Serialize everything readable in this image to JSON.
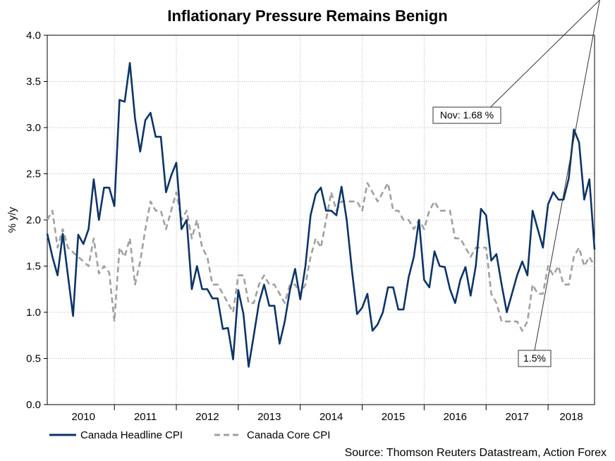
{
  "chart_data": {
    "type": "line",
    "title": "Inflationary Pressure Remains Benign",
    "ylabel": "% y/y",
    "xlabel": "",
    "ylim": [
      0,
      4
    ],
    "yticks": [
      "0.0",
      "0.5",
      "1.0",
      "1.5",
      "2.0",
      "2.5",
      "3.0",
      "3.5",
      "4.0"
    ],
    "x_start": "2009-12",
    "x_end": "2018-11",
    "year_labels": [
      "2010",
      "2011",
      "2012",
      "2013",
      "2014",
      "2015",
      "2016",
      "2017",
      "2018"
    ],
    "grid": true,
    "source": "Source: Thomson Reuters Datastream, Action Forex",
    "series": [
      {
        "name": "Canada Headline CPI",
        "color": "#0d3466",
        "style": "solid",
        "values": [
          1.85,
          1.6,
          1.4,
          1.85,
          1.4,
          0.96,
          1.84,
          1.74,
          1.9,
          2.44,
          2.0,
          2.35,
          2.35,
          2.15,
          3.3,
          3.28,
          3.7,
          3.1,
          2.74,
          3.08,
          3.16,
          2.9,
          2.9,
          2.3,
          2.48,
          2.62,
          1.9,
          2.0,
          1.25,
          1.5,
          1.25,
          1.25,
          1.15,
          1.15,
          0.82,
          0.83,
          0.49,
          1.24,
          0.98,
          0.41,
          0.75,
          1.1,
          1.3,
          1.07,
          1.07,
          0.66,
          0.9,
          1.24,
          1.47,
          1.14,
          1.5,
          2.05,
          2.28,
          2.35,
          2.1,
          2.1,
          2.05,
          2.36,
          2.0,
          1.46,
          0.98,
          1.05,
          1.2,
          0.8,
          0.87,
          1.0,
          1.27,
          1.27,
          1.03,
          1.03,
          1.38,
          1.6,
          2.0,
          1.35,
          1.27,
          1.66,
          1.5,
          1.49,
          1.25,
          1.1,
          1.35,
          1.49,
          1.18,
          1.5,
          2.12,
          2.05,
          1.56,
          1.63,
          1.3,
          1.0,
          1.2,
          1.4,
          1.55,
          1.4,
          2.1,
          1.9,
          1.7,
          2.17,
          2.3,
          2.22,
          2.22,
          2.45,
          2.98,
          2.84,
          2.22,
          2.44,
          1.68
        ]
      },
      {
        "name": "Canada Core CPI",
        "color": "#a0a0a0",
        "style": "dashed",
        "values": [
          2.0,
          2.1,
          1.7,
          1.9,
          1.7,
          1.65,
          1.6,
          1.55,
          1.5,
          1.8,
          1.42,
          1.5,
          1.43,
          0.9,
          1.7,
          1.6,
          1.8,
          1.3,
          1.55,
          1.9,
          2.2,
          2.1,
          2.1,
          1.9,
          2.1,
          2.3,
          2.0,
          2.1,
          1.8,
          2.0,
          1.7,
          1.6,
          1.3,
          1.3,
          1.2,
          1.1,
          1.0,
          1.4,
          1.4,
          1.1,
          1.1,
          1.3,
          1.4,
          1.3,
          1.3,
          1.2,
          1.1,
          1.3,
          1.3,
          1.2,
          1.3,
          1.6,
          1.8,
          1.7,
          2.0,
          2.3,
          2.1,
          2.2,
          2.2,
          2.2,
          2.2,
          2.1,
          2.4,
          2.3,
          2.2,
          2.3,
          2.4,
          2.1,
          2.1,
          2.0,
          2.0,
          1.9,
          2.0,
          1.9,
          2.1,
          2.2,
          2.1,
          2.1,
          2.1,
          1.8,
          1.8,
          1.7,
          1.6,
          1.7,
          1.7,
          1.7,
          1.2,
          1.1,
          0.9,
          0.9,
          0.9,
          0.9,
          0.8,
          0.9,
          1.3,
          1.2,
          1.2,
          1.5,
          1.4,
          1.5,
          1.3,
          1.3,
          1.6,
          1.7,
          1.5,
          1.6,
          1.5
        ]
      }
    ],
    "annotations": [
      {
        "text": "Nov: 1.68 %",
        "target_series": 0,
        "target_index": 107
      },
      {
        "text": "1.5%",
        "target_series": 1,
        "target_index": 107
      }
    ]
  }
}
